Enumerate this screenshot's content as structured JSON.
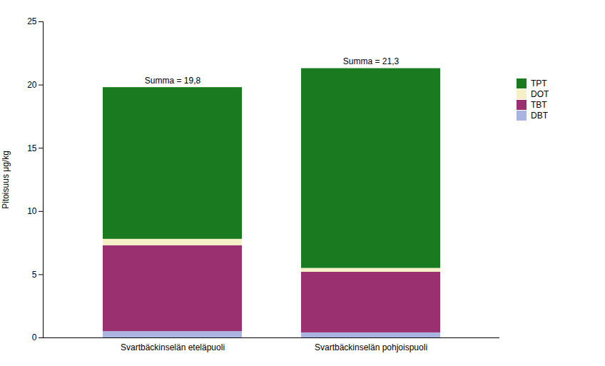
{
  "chart_data": {
    "type": "bar",
    "stacked": true,
    "categories": [
      "Svartbäckinselän eteläpuoli",
      "Svartbäckinselän pohjoispuoli"
    ],
    "series": [
      {
        "name": "DBT",
        "color": "#aab4e0",
        "values": [
          0.5,
          0.4
        ]
      },
      {
        "name": "TBT",
        "color": "#9b3070",
        "values": [
          6.8,
          4.8
        ]
      },
      {
        "name": "DOT",
        "color": "#f5f0c8",
        "values": [
          0.5,
          0.3
        ]
      },
      {
        "name": "TPT",
        "color": "#1a7a20",
        "values": [
          12.0,
          15.8
        ]
      }
    ],
    "totals": [
      19.8,
      21.3
    ],
    "total_labels": [
      "Summa = 19,8",
      "Summa = 21,3"
    ],
    "ylabel": "Pitoisuus μg/kg",
    "ylim": [
      0,
      25
    ],
    "yticks": [
      0,
      5,
      10,
      15,
      20,
      25
    ],
    "grid": false,
    "legend": "right"
  }
}
